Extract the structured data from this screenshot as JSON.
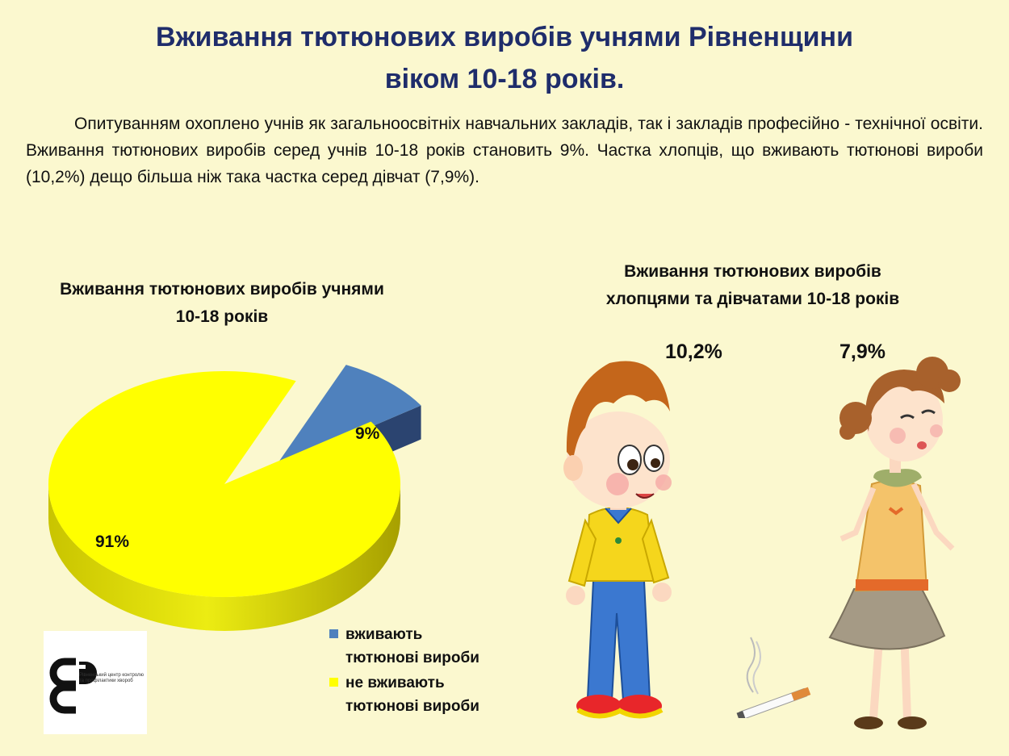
{
  "title": {
    "line1": "Вживання тютюнових виробів учнями Рівненщини",
    "line2": "віком 10-18 років."
  },
  "intro": "Опитуванням охоплено учнів як загальноосвітніх навчальних закладів, так і закладів професійно - технічної освіти. Вживання тютюнових виробів серед учнів 10-18 років становить 9%. Частка хлопців, що вживають тютюнові вироби (10,2%) дещо більша ніж така частка серед дівчат (7,9%).",
  "chart_data": [
    {
      "type": "pie",
      "title": "Вживання тютюнових виробів учнями 10-18 років",
      "categories": [
        "вживають тютюнові вироби",
        "не вживають тютюнові вироби"
      ],
      "values": [
        9,
        91
      ],
      "labels": [
        "9%",
        "91%"
      ],
      "colors": [
        "#4f81bd",
        "#ffff00"
      ],
      "style": "3d-exploded",
      "legend": "bottom-right"
    },
    {
      "type": "bar",
      "title": "Вживання тютюнових виробів хлопцями та дівчатами 10-18 років",
      "categories": [
        "хлопці",
        "дівчата"
      ],
      "values": [
        10.2,
        7.9
      ],
      "labels": [
        "10,2%",
        "7,9%"
      ]
    }
  ],
  "pie": {
    "title_line1": "Вживання тютюнових виробів учнями",
    "title_line2": "10-18 років"
  },
  "legend": {
    "item1_line1": "вживають",
    "item1_line2": "тютюнові вироби",
    "item2_line1": "не вживають",
    "item2_line2": "тютюнові вироби"
  },
  "right": {
    "title_line1": "Вживання тютюнових виробів",
    "title_line2": "хлопцями та дівчатами 10-18 років",
    "boys_label": "10,2%",
    "girls_label": "7,9%"
  },
  "logo": {
    "caption": "Рівненський центр контролю та профілактики хвороб"
  },
  "colors": {
    "title": "#1f2d6b",
    "background": "#fbf8cf",
    "smokers": "#4f81bd",
    "non_smokers": "#ffff00"
  }
}
